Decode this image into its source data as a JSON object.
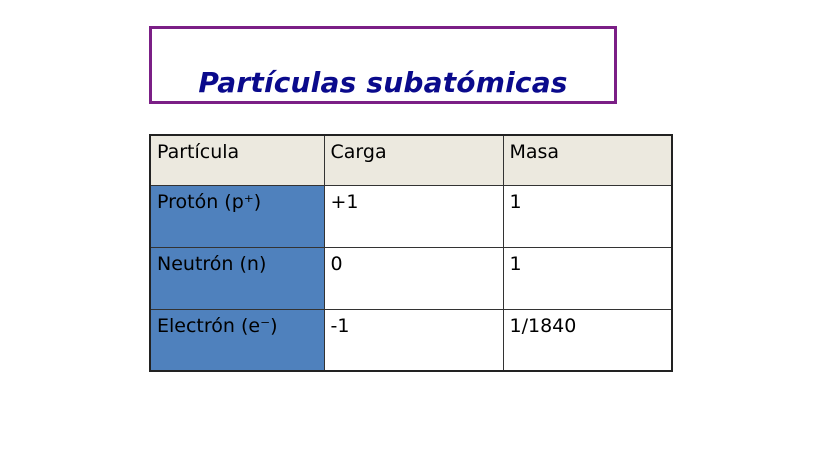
{
  "title": "Partículas subatómicas",
  "colors": {
    "title": "#0a0a8c",
    "title_border": "#7b1f86",
    "header_bg": "#ece9df",
    "first_column_bg": "#4f81bd"
  },
  "table": {
    "headers": [
      "Partícula",
      "Carga",
      "Masa"
    ],
    "rows": [
      [
        "Protón (p⁺)",
        "+1",
        "1"
      ],
      [
        "Neutrón (n)",
        "0",
        "1"
      ],
      [
        "Electrón (e⁻)",
        "-1",
        "1/1840"
      ]
    ]
  }
}
